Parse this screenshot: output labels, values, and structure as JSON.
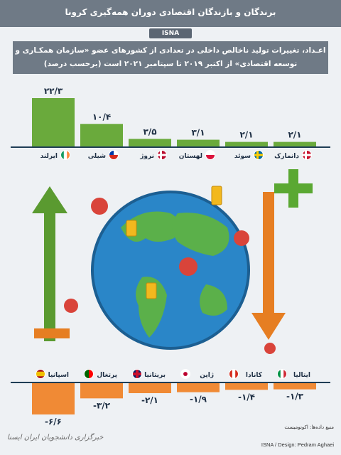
{
  "header": {
    "title": "برندگان و بازندگان اقتصادی دوران همه‌گیری کرونا",
    "logo": "ISNA"
  },
  "subtitle": "اعـداد، تغییرات تولید ناخالص داخلی در تعدادی از کشورهای عضو «سازمان همکـاری و توسعه اقتصادی» از اکتبر ۲۰۱۹ تا سپتامبر ۲۰۲۱ است (برحسب درصد)",
  "chart_data": [
    {
      "type": "bar",
      "categories": [
        "ایرلند",
        "شیلی",
        "نروژ",
        "لهستان",
        "سوئد",
        "دانمارک"
      ],
      "values": [
        22.3,
        10.4,
        3.5,
        3.1,
        2.1,
        2.1
      ],
      "value_labels": [
        "۲۲/۳",
        "۱۰/۴",
        "۳/۵",
        "۳/۱",
        "۲/۱",
        "۲/۱"
      ],
      "ylim": [
        0,
        22.3
      ],
      "color": "#6aaa3c",
      "flags": [
        "ireland-flag",
        "chile-flag",
        "norway-flag",
        "poland-flag",
        "sweden-flag",
        "denmark-flag"
      ]
    },
    {
      "type": "bar",
      "categories": [
        "اسپانیا",
        "پرتغال",
        "بریتانیا",
        "ژاپن",
        "کانادا",
        "ایتالیا"
      ],
      "values": [
        -6.6,
        -3.2,
        -2.1,
        -1.9,
        -1.4,
        -1.3
      ],
      "value_labels": [
        "-۶/۶",
        "-۳/۲",
        "-۲/۱",
        "-۱/۹",
        "-۱/۴",
        "-۱/۳"
      ],
      "ylim": [
        -6.6,
        0
      ],
      "color": "#f08a35",
      "flags": [
        "spain-flag",
        "portugal-flag",
        "uk-flag",
        "japan-flag",
        "canada-flag",
        "italy-flag"
      ]
    }
  ],
  "footer": {
    "source": "منبع داده‌ها: اکونومیست",
    "credit": "ISNA / Design: Pedram Aghaei",
    "watermark": "خبرگزاری دانشجویان ایران ایسنا"
  }
}
